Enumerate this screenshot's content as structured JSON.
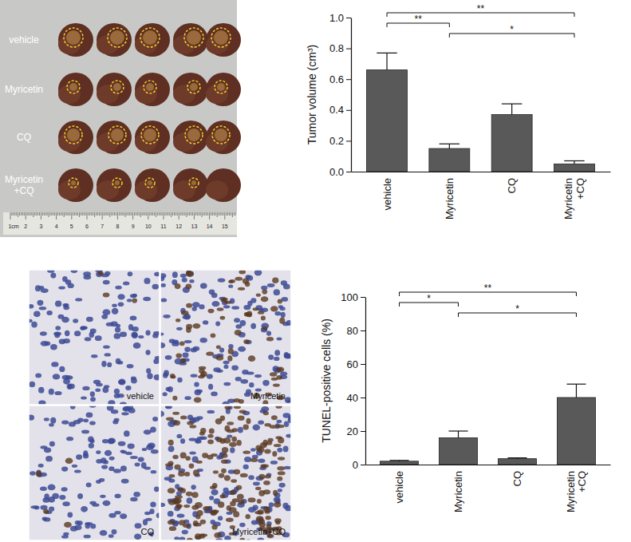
{
  "chart_data": [
    {
      "type": "bar",
      "y_label": "Tumor volume (cm³)",
      "categories": [
        "vehicle",
        "Myricetin",
        "CQ",
        "Myricetin\n+CQ"
      ],
      "values": [
        0.66,
        0.15,
        0.37,
        0.05
      ],
      "errors": [
        0.11,
        0.03,
        0.07,
        0.02
      ],
      "color": "#595959",
      "ylim": [
        0,
        1.0
      ],
      "yticks": [
        {
          "value": 0,
          "label": "0.0"
        },
        {
          "value": 0.2,
          "label": "0.2"
        },
        {
          "value": 0.4,
          "label": "0.4"
        },
        {
          "value": 0.6,
          "label": "0.6"
        },
        {
          "value": 0.8,
          "label": "0.8"
        },
        {
          "value": 1.0,
          "label": "1.0"
        }
      ],
      "grid": false,
      "annotations": [
        {
          "groups": [
            "vehicle",
            "Myricetin\n+CQ"
          ],
          "label": "**"
        },
        {
          "groups": [
            "vehicle",
            "Myricetin"
          ],
          "label": "**"
        },
        {
          "groups": [
            "Myricetin",
            "Myricetin\n+CQ"
          ],
          "label": "*"
        }
      ]
    },
    {
      "type": "bar",
      "y_label": "TUNEL-positive cells (%)",
      "categories": [
        "vehicle",
        "Myricetin",
        "CQ",
        "Myricetin\n+CQ"
      ],
      "values": [
        2,
        16,
        3.5,
        40
      ],
      "errors": [
        0.5,
        4,
        0.5,
        8
      ],
      "color": "#595959",
      "ylim": [
        0,
        100
      ],
      "yticks": [
        0,
        20,
        40,
        60,
        80,
        100
      ],
      "grid": false,
      "annotations": [
        {
          "groups": [
            "vehicle",
            "Myricetin\n+CQ"
          ],
          "label": "**"
        },
        {
          "groups": [
            "vehicle",
            "Myricetin"
          ],
          "label": "*"
        },
        {
          "groups": [
            "Myricetin",
            "Myricetin\n+CQ"
          ],
          "label": "*"
        }
      ]
    }
  ],
  "image_panels": {
    "tumor_photo": {
      "row_labels": [
        "vehicle",
        "Myricetin",
        "CQ",
        "Myricetin\n+CQ"
      ],
      "ruler_labels": [
        "1cm",
        "2",
        "3",
        "4",
        "5",
        "6",
        "7",
        "8",
        "9",
        "10",
        "11",
        "12",
        "13",
        "14",
        "15"
      ]
    },
    "tunel_images": {
      "panel_labels": [
        "vehicle",
        "Myricetin",
        "CQ",
        "Myricetin+CQ"
      ]
    }
  }
}
